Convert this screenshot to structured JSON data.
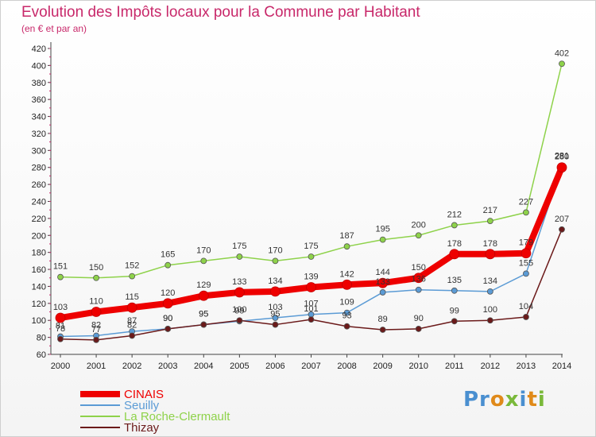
{
  "header": {
    "title": "Evolution des Impôts locaux pour la Commune par Habitant",
    "subtitle": "(en € et par an)"
  },
  "logo_text": "Proxiti",
  "colors": {
    "title": "#c8286a",
    "cinais": "#ee0000",
    "seuilly": "#5b9bd5",
    "la_roche": "#8ed24a",
    "thizay": "#6b1a1a"
  },
  "chart_data": {
    "type": "line",
    "title": "Evolution des Impôts locaux pour la Commune par Habitant",
    "subtitle": "(en € et par an)",
    "xlabel": "",
    "ylabel": "",
    "x": [
      "2000",
      "2001",
      "2002",
      "2003",
      "2004",
      "2005",
      "2006",
      "2007",
      "2008",
      "2009",
      "2010",
      "2011",
      "2012",
      "2013",
      "2014"
    ],
    "ylim": [
      60,
      420
    ],
    "yticks": [
      60,
      80,
      100,
      120,
      140,
      160,
      180,
      200,
      220,
      240,
      260,
      280,
      300,
      320,
      340,
      360,
      380,
      400,
      420
    ],
    "grid": false,
    "legend_position": "bottom-left",
    "series": [
      {
        "name": "CINAIS",
        "color": "#ee0000",
        "values": [
          103,
          110,
          115,
          120,
          129,
          133,
          134,
          139,
          142,
          144,
          150,
          178,
          178,
          179,
          280
        ]
      },
      {
        "name": "Seuilly",
        "color": "#5b9bd5",
        "values": [
          81,
          82,
          87,
          90,
          95,
          99,
          103,
          107,
          109,
          133,
          136,
          135,
          134,
          155,
          281
        ]
      },
      {
        "name": "La Roche-Clermault",
        "color": "#8ed24a",
        "values": [
          151,
          150,
          152,
          165,
          170,
          175,
          170,
          175,
          187,
          195,
          200,
          212,
          217,
          227,
          402
        ]
      },
      {
        "name": "Thizay",
        "color": "#6b1a1a",
        "values": [
          78,
          77,
          82,
          90,
          95,
          100,
          95,
          101,
          93,
          89,
          90,
          99,
          100,
          104,
          207
        ]
      }
    ]
  }
}
